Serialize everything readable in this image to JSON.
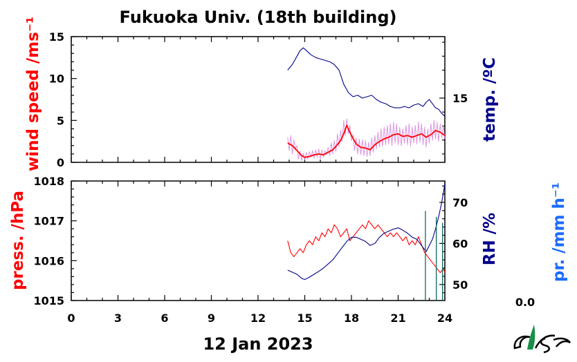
{
  "title": "Fukuoka Univ. (18th building)",
  "date_label": "12 Jan 2023",
  "colors": {
    "wind": "#ff0000",
    "wind_raw": "#d98be0",
    "temp": "#00008b",
    "press": "#ff0000",
    "rh": "#00008b",
    "precip": "#0b6b5e",
    "precip_label": "#1a6bff"
  },
  "precip_value": "0.0",
  "chart_data": [
    {
      "type": "line",
      "panel": "top",
      "xlim": [
        0,
        24
      ],
      "x_ticks": [
        "0",
        "3",
        "6",
        "9",
        "12",
        "15",
        "18",
        "21",
        "24"
      ],
      "left_axis": {
        "label": "wind speed /ms⁻¹",
        "ylim": [
          0,
          15
        ],
        "ticks": [
          "0",
          "5",
          "10",
          "15"
        ]
      },
      "right_axis": {
        "label": "temp. /ºC",
        "ylim": [
          10.4,
          19.4
        ],
        "ticks": [
          "15"
        ]
      },
      "series": [
        {
          "key": "wind_mean",
          "axis": "left",
          "x": [
            13.9,
            14.2,
            14.5,
            14.8,
            15.0,
            15.3,
            15.6,
            15.9,
            16.2,
            16.5,
            16.8,
            17.0,
            17.3,
            17.5,
            17.7,
            18.0,
            18.3,
            18.6,
            18.9,
            19.2,
            19.5,
            19.8,
            20.1,
            20.4,
            20.7,
            21.0,
            21.3,
            21.6,
            21.9,
            22.2,
            22.5,
            22.8,
            23.1,
            23.4,
            23.7,
            24.0
          ],
          "y": [
            2.3,
            2.0,
            1.4,
            0.8,
            0.6,
            0.7,
            0.9,
            1.0,
            0.9,
            1.2,
            1.5,
            1.9,
            2.6,
            3.4,
            4.4,
            3.2,
            2.2,
            1.8,
            1.7,
            1.5,
            2.1,
            2.5,
            2.8,
            3.0,
            3.3,
            3.4,
            3.1,
            3.2,
            3.0,
            3.2,
            3.4,
            3.0,
            3.3,
            3.8,
            3.6,
            3.2
          ]
        },
        {
          "key": "wind_raw",
          "axis": "left",
          "x": [
            13.9,
            14.0,
            14.1,
            14.2,
            14.3,
            14.4,
            14.5,
            14.6,
            14.7,
            14.8,
            14.9,
            15.0,
            15.1,
            15.2,
            15.3,
            15.4,
            15.5,
            15.6,
            15.7,
            15.8,
            15.9,
            16.0,
            16.1,
            16.2,
            16.3,
            16.4,
            16.5,
            16.6,
            16.7,
            16.8,
            16.9,
            17.0,
            17.1,
            17.2,
            17.3,
            17.4,
            17.5,
            17.6,
            17.7,
            17.8,
            17.9,
            18.0,
            18.1,
            18.2,
            18.3,
            18.4,
            18.5,
            18.6,
            18.7,
            18.8,
            18.9,
            19.0,
            19.1,
            19.2,
            19.3,
            19.4,
            19.5,
            19.6,
            19.7,
            19.8,
            19.9,
            20.0,
            20.1,
            20.2,
            20.3,
            20.4,
            20.5,
            20.6,
            20.7,
            20.8,
            20.9,
            21.0,
            21.1,
            21.2,
            21.3,
            21.4,
            21.5,
            21.6,
            21.7,
            21.8,
            21.9,
            22.0,
            22.1,
            22.2,
            22.3,
            22.4,
            22.5,
            22.6,
            22.7,
            22.8,
            22.9,
            23.0,
            23.1,
            23.2,
            23.3,
            23.4,
            23.5,
            23.6,
            23.7,
            23.8,
            23.9,
            24.0
          ],
          "y": [
            3.0,
            1.4,
            3.2,
            1.0,
            2.7,
            1.6,
            2.0,
            0.4,
            1.3,
            0.2,
            1.1,
            0.3,
            1.2,
            0.4,
            1.3,
            0.6,
            1.4,
            0.5,
            1.5,
            0.6,
            1.6,
            0.4,
            1.5,
            0.6,
            1.4,
            0.9,
            1.8,
            0.8,
            2.3,
            1.0,
            2.6,
            1.3,
            3.4,
            1.9,
            3.8,
            2.5,
            5.0,
            3.2,
            5.2,
            3.4,
            4.4,
            2.6,
            3.3,
            1.4,
            2.9,
            1.0,
            2.8,
            0.9,
            2.7,
            0.8,
            2.6,
            0.7,
            2.4,
            0.8,
            2.9,
            1.2,
            3.2,
            1.6,
            3.6,
            1.8,
            4.0,
            1.9,
            4.2,
            2.1,
            4.4,
            2.2,
            4.6,
            2.0,
            4.8,
            2.3,
            4.6,
            2.1,
            4.2,
            2.0,
            4.0,
            2.3,
            4.4,
            2.1,
            4.6,
            1.9,
            4.2,
            2.3,
            4.4,
            2.2,
            4.8,
            2.4,
            4.6,
            2.1,
            4.2,
            1.8,
            4.0,
            2.3,
            4.6,
            2.6,
            5.0,
            2.8,
            4.8,
            2.5,
            4.6,
            2.9,
            4.4,
            2.8
          ]
        },
        {
          "key": "temp",
          "axis": "right",
          "x": [
            13.9,
            14.2,
            14.5,
            14.7,
            14.9,
            15.1,
            15.4,
            15.7,
            16.0,
            16.3,
            16.6,
            16.9,
            17.2,
            17.5,
            17.8,
            18.1,
            18.4,
            18.7,
            19.0,
            19.3,
            19.6,
            19.9,
            20.2,
            20.5,
            20.8,
            21.1,
            21.4,
            21.7,
            22.0,
            22.3,
            22.6,
            22.8,
            23.0,
            23.2,
            23.4,
            23.6,
            23.8,
            24.0
          ],
          "y": [
            17.0,
            17.4,
            18.0,
            18.4,
            18.6,
            18.4,
            18.1,
            17.9,
            17.8,
            17.7,
            17.6,
            17.4,
            17.0,
            16.0,
            15.4,
            15.1,
            15.2,
            15.0,
            15.1,
            15.2,
            14.9,
            14.7,
            14.6,
            14.4,
            14.3,
            14.3,
            14.4,
            14.3,
            14.5,
            14.6,
            14.4,
            14.7,
            14.9,
            14.6,
            14.3,
            14.2,
            13.9,
            13.7
          ]
        }
      ]
    },
    {
      "type": "line",
      "panel": "bottom",
      "xlim": [
        0,
        24
      ],
      "x_ticks": [
        "0",
        "3",
        "6",
        "9",
        "12",
        "15",
        "18",
        "21",
        "24"
      ],
      "left_axis": {
        "label": "press. /hPa",
        "ylim": [
          1015,
          1018
        ],
        "ticks": [
          "1015",
          "1016",
          "1017",
          "1018"
        ]
      },
      "right_axis": {
        "label": "RH /%",
        "ylim": [
          46.1,
          75.2
        ],
        "ticks": [
          "50",
          "60",
          "70"
        ]
      },
      "extra_axis": {
        "label": "pr. /mm h⁻¹",
        "ticks": [
          "0.0"
        ]
      },
      "series": [
        {
          "key": "press",
          "axis": "left",
          "x": [
            13.9,
            14.1,
            14.3,
            14.5,
            14.7,
            14.9,
            15.1,
            15.3,
            15.5,
            15.7,
            15.9,
            16.1,
            16.3,
            16.5,
            16.7,
            16.9,
            17.1,
            17.3,
            17.5,
            17.7,
            17.9,
            18.1,
            18.3,
            18.5,
            18.7,
            18.9,
            19.1,
            19.3,
            19.5,
            19.7,
            19.9,
            20.1,
            20.3,
            20.5,
            20.7,
            20.9,
            21.1,
            21.3,
            21.5,
            21.7,
            21.9,
            22.1,
            22.3,
            22.5,
            22.7,
            22.9,
            23.1,
            23.3,
            23.5,
            23.7,
            23.9,
            24.0
          ],
          "y": [
            1016.5,
            1016.2,
            1016.1,
            1016.2,
            1016.3,
            1016.2,
            1016.4,
            1016.5,
            1016.4,
            1016.6,
            1016.5,
            1016.7,
            1016.6,
            1016.8,
            1016.7,
            1016.9,
            1016.8,
            1016.6,
            1016.7,
            1016.8,
            1016.5,
            1016.6,
            1016.7,
            1016.8,
            1016.9,
            1016.8,
            1017.0,
            1016.9,
            1016.8,
            1016.9,
            1016.8,
            1016.7,
            1016.6,
            1016.7,
            1016.6,
            1016.7,
            1016.6,
            1016.5,
            1016.6,
            1016.4,
            1016.5,
            1016.4,
            1016.6,
            1016.4,
            1016.2,
            1016.1,
            1016.0,
            1015.9,
            1015.8,
            1015.7,
            1015.8,
            1015.7
          ]
        },
        {
          "key": "rh",
          "axis": "right",
          "x": [
            13.9,
            14.2,
            14.5,
            14.8,
            15.0,
            15.3,
            15.6,
            15.9,
            16.2,
            16.5,
            16.8,
            17.1,
            17.4,
            17.7,
            18.0,
            18.3,
            18.6,
            18.9,
            19.2,
            19.5,
            19.8,
            20.1,
            20.4,
            20.7,
            21.0,
            21.3,
            21.6,
            21.9,
            22.2,
            22.5,
            22.8,
            23.0,
            23.2,
            23.4,
            23.6,
            23.8,
            24.0
          ],
          "y": [
            53.5,
            53.0,
            52.5,
            51.5,
            51.2,
            51.8,
            52.5,
            53.2,
            54.0,
            55.0,
            56.0,
            57.5,
            59.0,
            60.5,
            61.5,
            61.5,
            61.0,
            60.5,
            59.5,
            60.0,
            61.5,
            62.5,
            63.0,
            63.5,
            63.8,
            63.2,
            62.5,
            61.5,
            61.0,
            59.5,
            58.0,
            59.5,
            61.0,
            63.5,
            66.5,
            70.0,
            74.5
          ]
        },
        {
          "key": "precip_bars",
          "axis": "none",
          "x": [
            22.75,
            23.45,
            23.85
          ],
          "y": [
            0.75,
            0.7,
            0.65
          ]
        }
      ]
    }
  ]
}
